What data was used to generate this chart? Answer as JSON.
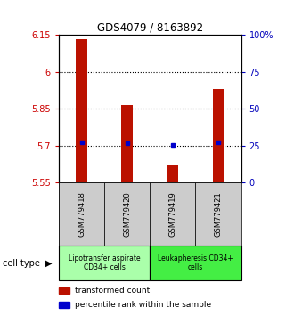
{
  "title": "GDS4079 / 8163892",
  "samples": [
    "GSM779418",
    "GSM779420",
    "GSM779419",
    "GSM779421"
  ],
  "transformed_counts": [
    6.13,
    5.865,
    5.625,
    5.93
  ],
  "percentile_ranks_pct": [
    27.5,
    26.5,
    25.5,
    27.5
  ],
  "ylim_left": [
    5.55,
    6.15
  ],
  "ylim_right": [
    0,
    100
  ],
  "yticks_left": [
    5.55,
    5.7,
    5.85,
    6.0,
    6.15
  ],
  "yticks_right": [
    0,
    25,
    50,
    75,
    100
  ],
  "ytick_labels_left": [
    "5.55",
    "5.7",
    "5.85",
    "6",
    "6.15"
  ],
  "ytick_labels_right": [
    "0",
    "25",
    "50",
    "75",
    "100%"
  ],
  "hlines": [
    5.7,
    5.85,
    6.0
  ],
  "bar_color": "#bb1100",
  "dot_color": "#0000cc",
  "bar_bottom": 5.55,
  "bar_width": 0.25,
  "cell_types": [
    {
      "label": "Lipotransfer aspirate\nCD34+ cells",
      "color": "#aaffaa",
      "span": [
        0,
        2
      ]
    },
    {
      "label": "Leukapheresis CD34+\ncells",
      "color": "#44ee44",
      "span": [
        2,
        4
      ]
    }
  ],
  "cell_type_label": "cell type",
  "legend_items": [
    {
      "color": "#bb1100",
      "label": "transformed count"
    },
    {
      "color": "#0000cc",
      "label": "percentile rank within the sample"
    }
  ],
  "sample_box_color": "#cccccc",
  "left_tick_color": "#cc0000",
  "right_tick_color": "#0000bb",
  "title_fontsize": 8.5,
  "tick_fontsize": 7,
  "sample_fontsize": 6,
  "cell_fontsize": 5.5,
  "legend_fontsize": 6.5
}
